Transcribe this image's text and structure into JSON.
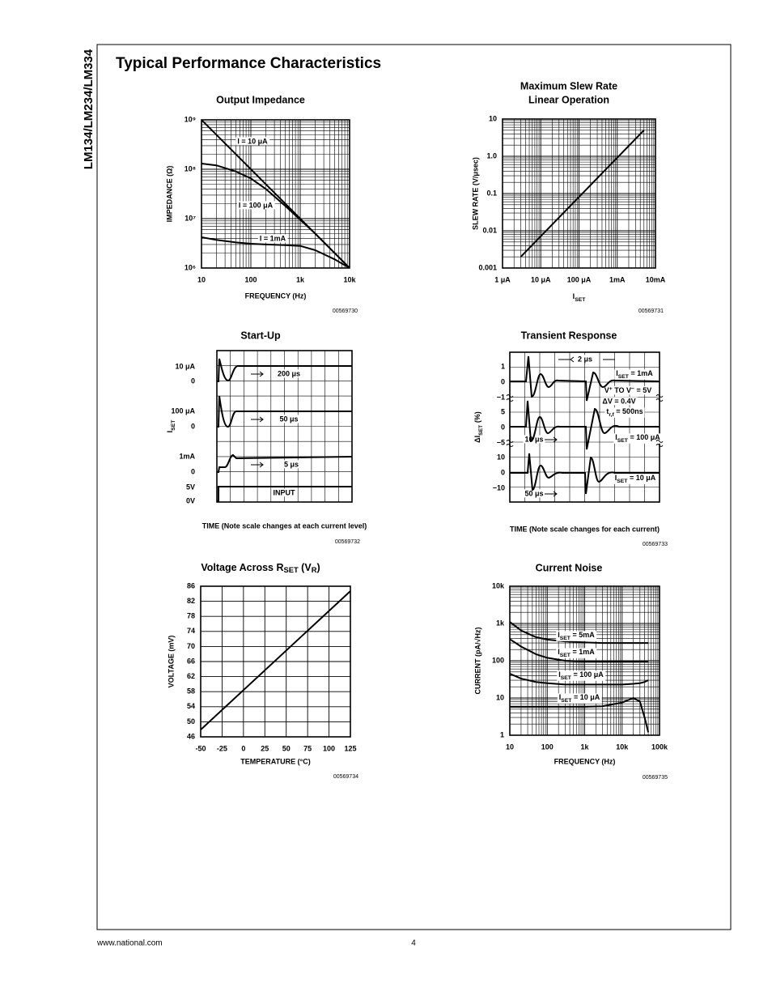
{
  "side_title": "LM134/LM234/LM334",
  "heading": "Typical Performance Characteristics",
  "footer": {
    "url": "www.national.com",
    "page": "4"
  },
  "chart_data": [
    {
      "type": "line",
      "title": "Output Impedance",
      "x_label": "FREQUENCY (Hz)",
      "y_label": "IMPEDANCE (Ω)",
      "figure_id": "00569730",
      "x_scale": "log",
      "y_scale": "log",
      "grid": true,
      "minor_grid": true,
      "xlim": [
        10,
        10000
      ],
      "xticks": [
        10,
        100,
        {
          "value": 1000,
          "label": "1k"
        },
        {
          "value": 10000,
          "label": "10k"
        }
      ],
      "ylim": [
        1000000,
        1000000000
      ],
      "yticks": [
        {
          "value": 1000000,
          "label": "10⁶"
        },
        {
          "value": 10000000,
          "label": "10⁷"
        },
        {
          "value": 100000000,
          "label": "10⁸"
        },
        {
          "value": 1000000000,
          "label": "10⁹"
        }
      ],
      "x": [
        10,
        20,
        50,
        100,
        200,
        500,
        1000,
        2000,
        5000,
        10000
      ],
      "series": [
        {
          "color": "#000000",
          "values": [
            1000000000,
            500000000,
            200000000,
            100000000,
            50000000,
            20000000,
            10000000,
            5000000,
            2000000,
            1000000
          ]
        },
        {
          "color": "#000000",
          "values": [
            130000000,
            120000000,
            90000000,
            65000000,
            40000000,
            18000000,
            9500000,
            5000000,
            2000000,
            1000000
          ]
        },
        {
          "color": "#000000",
          "values": [
            4200000,
            3700000,
            3300000,
            3100000,
            3000000,
            2900000,
            2800000,
            2300000,
            1500000,
            1000000
          ]
        }
      ],
      "annotations": [
        {
          "text": "I = 10 μA"
        },
        {
          "text": "I = 100 μA"
        },
        {
          "text": "I = 1mA"
        }
      ]
    },
    {
      "type": "line",
      "title": "Maximum Slew Rate",
      "subtitle": "Linear Operation",
      "x_label": [
        "I",
        "SET"
      ],
      "y_label": "SLEW RATE (V/μsec)",
      "figure_id": "00569731",
      "x_scale": "log",
      "y_scale": "log",
      "grid": true,
      "minor_grid": true,
      "xlim": [
        1e-06,
        0.01
      ],
      "xticks": [
        {
          "value": 1e-06,
          "label": "1 μA"
        },
        {
          "value": 1e-05,
          "label": "10 μA"
        },
        {
          "value": 0.0001,
          "label": "100 μA"
        },
        {
          "value": 0.001,
          "label": "1mA"
        },
        {
          "value": 0.01,
          "label": "10mA"
        }
      ],
      "ylim": [
        0.001,
        10
      ],
      "yticks": [
        0.001,
        0.01,
        0.1,
        {
          "value": 1,
          "label": "1.0"
        },
        10
      ],
      "x": [
        3e-06,
        0.005
      ],
      "series": [
        {
          "color": "#000000",
          "values": [
            0.002,
            5
          ]
        }
      ]
    },
    {
      "type": "timing-diagram",
      "title": "Start-Up",
      "x_label": "TIME (Note scale changes at each current level)",
      "y_label": [
        "I",
        "SET"
      ],
      "figure_id": "00569732",
      "levels": [
        "10 μA",
        "0",
        "100 μA",
        "0",
        "1mA",
        "0",
        "5V",
        "0V"
      ],
      "annotations": [
        {
          "text": "200 μs"
        },
        {
          "text": "50 μs"
        },
        {
          "text": "5 μs"
        },
        {
          "text": "INPUT"
        }
      ]
    },
    {
      "type": "timing-diagram",
      "title": "Transient Response",
      "x_label": "TIME (Note scale changes for each current)",
      "y_label": [
        "ΔI",
        "SET",
        " (%)"
      ],
      "figure_id": "00569733",
      "levels": [
        "1",
        "0",
        "−1",
        "5",
        "0",
        "−5",
        "10",
        "0",
        "−10"
      ],
      "annotations": [
        {
          "text": "2 μs"
        },
        {
          "text": [
            "I",
            "SET",
            " = 1mA"
          ]
        },
        {
          "text": [
            "V",
            "+",
            " TO V",
            "−",
            " = 5V"
          ]
        },
        {
          "text": "ΔV = 0.4V"
        },
        {
          "text": [
            "t",
            "r,f",
            " = 500ns"
          ]
        },
        {
          "text": [
            "I",
            "SET",
            " = 100 μA"
          ]
        },
        {
          "text": "10 μs"
        },
        {
          "text": [
            "I",
            "SET",
            " = 10 μA"
          ]
        },
        {
          "text": "50 μs"
        }
      ]
    },
    {
      "type": "line",
      "title": [
        "Voltage Across R",
        "SET",
        " (V",
        "R",
        ")"
      ],
      "x_label": "TEMPERATURE (°C)",
      "y_label": "VOLTAGE (mV)",
      "figure_id": "00569734",
      "x_scale": "linear",
      "y_scale": "linear",
      "grid": true,
      "minor_grid": false,
      "xlim": [
        -50,
        125
      ],
      "xticks": [
        -50,
        -25,
        0,
        25,
        50,
        75,
        100,
        125
      ],
      "ylim": [
        46,
        86
      ],
      "yticks": [
        46,
        50,
        54,
        58,
        62,
        66,
        70,
        74,
        78,
        82,
        86
      ],
      "x": [
        -50,
        125
      ],
      "series": [
        {
          "color": "#000000",
          "values": [
            47.9,
            84.7
          ]
        }
      ]
    },
    {
      "type": "line",
      "title": "Current Noise",
      "x_label": "FREQUENCY (Hz)",
      "y_label": "CURRENT (pA/√Hz)",
      "figure_id": "00569735",
      "x_scale": "log",
      "y_scale": "log",
      "grid": true,
      "minor_grid": true,
      "xlim": [
        10,
        100000
      ],
      "xticks": [
        10,
        100,
        {
          "value": 1000,
          "label": "1k"
        },
        {
          "value": 10000,
          "label": "10k"
        },
        {
          "value": 100000,
          "label": "100k"
        }
      ],
      "ylim": [
        1,
        10000
      ],
      "yticks": [
        1,
        10,
        100,
        {
          "value": 1000,
          "label": "1k"
        },
        {
          "value": 10000,
          "label": "10k"
        }
      ],
      "x": [
        10,
        20,
        50,
        100,
        300,
        1000,
        3000,
        10000,
        20000,
        30000,
        40000,
        50000
      ],
      "series": [
        {
          "color": "#000000",
          "values": [
            1100,
            650,
            430,
            370,
            330,
            310,
            300,
            300,
            300,
            300,
            300,
            300
          ]
        },
        {
          "color": "#000000",
          "values": [
            380,
            240,
            150,
            120,
            100,
            95,
            95,
            95,
            95,
            95,
            95,
            95
          ]
        },
        {
          "color": "#000000",
          "values": [
            45,
            33,
            27,
            25,
            23,
            23,
            23,
            23,
            24,
            25,
            27,
            30
          ]
        },
        {
          "color": "#000000",
          "values": [
            5.8,
            5.8,
            5.8,
            5.8,
            5.8,
            5.8,
            6,
            7.5,
            10,
            8,
            3,
            1.2
          ]
        }
      ],
      "annotations": [
        {
          "text": [
            "I",
            "SET",
            " = 5mA"
          ]
        },
        {
          "text": [
            "I",
            "SET",
            " = 1mA"
          ]
        },
        {
          "text": [
            "I",
            "SET",
            " = 100 μA"
          ]
        },
        {
          "text": [
            "I",
            "SET",
            " = 10 μA"
          ]
        }
      ]
    }
  ]
}
